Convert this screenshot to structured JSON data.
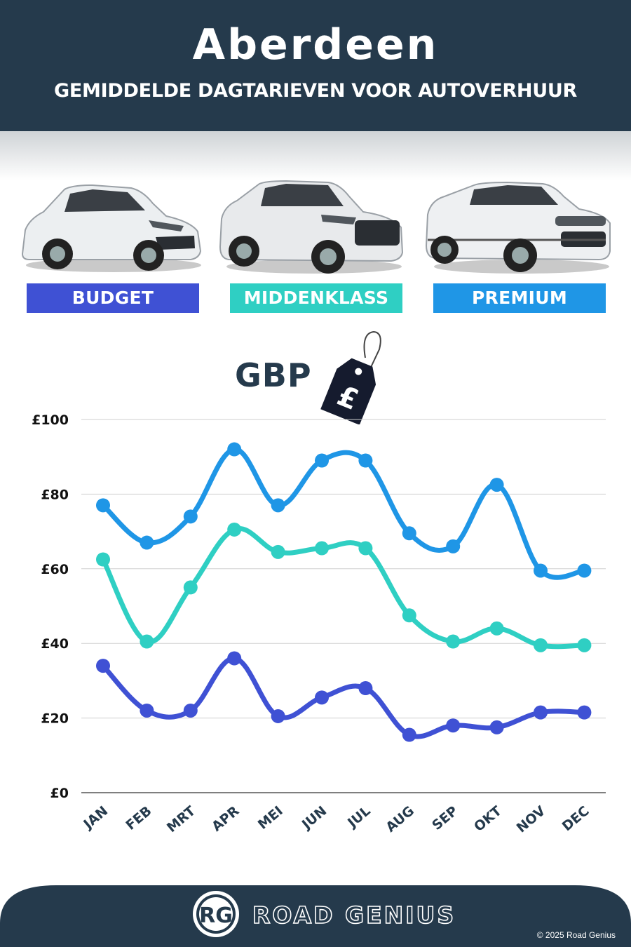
{
  "header": {
    "city": "Aberdeen",
    "subtitle": "GEMIDDELDE DAGTARIEVEN VOOR AUTOVERHUUR"
  },
  "categories": [
    {
      "label": "BUDGET",
      "color": "#3f51d4"
    },
    {
      "label": "MIDDENKLASS",
      "color": "#2fcfc3"
    },
    {
      "label": "PREMIUM",
      "color": "#1f96e6"
    }
  ],
  "currency": {
    "label": "GBP",
    "symbol": "£"
  },
  "chart_data": {
    "type": "line",
    "x": [
      "JAN",
      "FEB",
      "MRT",
      "APR",
      "MEI",
      "JUN",
      "JUL",
      "AUG",
      "SEP",
      "OKT",
      "NOV",
      "DEC"
    ],
    "series": [
      {
        "name": "PREMIUM",
        "color": "#1f96e6",
        "values": [
          77,
          67,
          74,
          92,
          77,
          89,
          89,
          69.5,
          66,
          82.5,
          59.5,
          59.5
        ]
      },
      {
        "name": "MIDDENKLASS",
        "color": "#2fcfc3",
        "values": [
          62.5,
          40.5,
          55,
          70.5,
          64.5,
          65.5,
          65.5,
          47.5,
          40.5,
          44,
          39.5,
          39.5
        ]
      },
      {
        "name": "BUDGET",
        "color": "#3f51d4",
        "values": [
          34,
          22,
          22,
          36,
          20.5,
          25.5,
          28,
          15.5,
          18,
          17.5,
          21.5,
          21.5
        ]
      }
    ],
    "yticks": [
      "£0",
      "£20",
      "£40",
      "£60",
      "£80",
      "£100"
    ],
    "ylim": [
      0,
      100
    ],
    "grid": true
  },
  "footer": {
    "logo_initials": "RG",
    "brand": "ROAD GENIUS",
    "copyright": "© 2025 Road Genius"
  }
}
